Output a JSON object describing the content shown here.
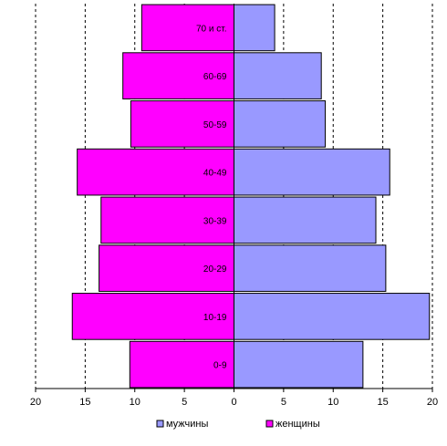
{
  "chart_data": {
    "type": "bar",
    "orientation": "horizontal",
    "layout": "population-pyramid",
    "title": "",
    "xlabel": "",
    "ylabel": "",
    "categories": [
      "70 и ст.",
      "60-69",
      "50-59",
      "40-49",
      "30-39",
      "20-29",
      "10-19",
      "0-9"
    ],
    "series": [
      {
        "name": "женщины",
        "side": "left",
        "color": "#ff00ff",
        "values": [
          9.3,
          11.2,
          10.4,
          15.8,
          13.4,
          13.6,
          16.3,
          10.5
        ]
      },
      {
        "name": "мужчины",
        "side": "right",
        "color": "#9999ff",
        "values": [
          4.1,
          8.8,
          9.2,
          15.7,
          14.3,
          15.3,
          19.7,
          13.0
        ]
      }
    ],
    "xlim": [
      -20,
      20
    ],
    "x_ticks": [
      -20,
      -15,
      -10,
      -5,
      0,
      5,
      10,
      15,
      20
    ],
    "x_tick_labels": [
      "20",
      "15",
      "10",
      "5",
      "0",
      "5",
      "10",
      "15",
      "20"
    ],
    "grid": "vertical-dashed",
    "legend_position": "bottom",
    "legend": [
      {
        "label": "мужчины",
        "color": "#9999ff"
      },
      {
        "label": "женщины",
        "color": "#ff00ff"
      }
    ]
  }
}
